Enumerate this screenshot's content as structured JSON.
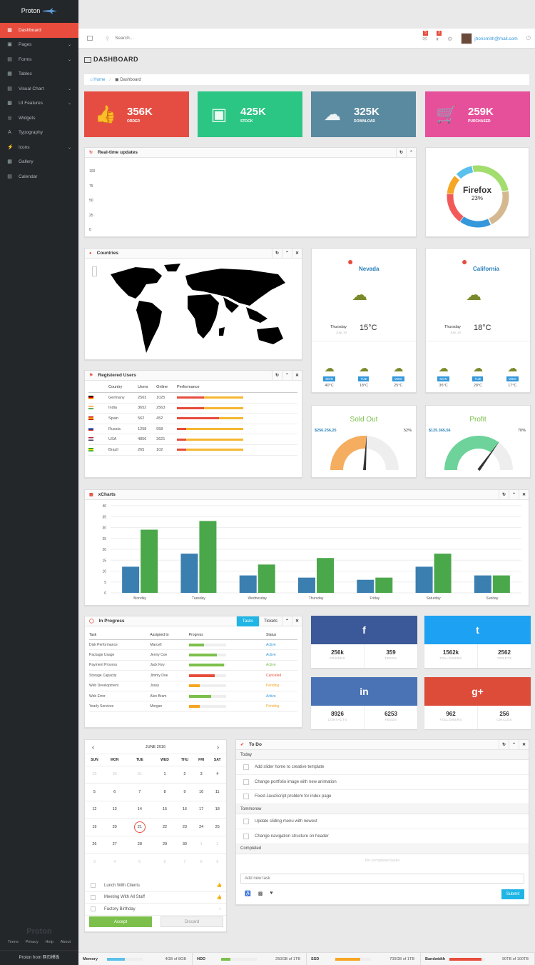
{
  "sidebar": {
    "brand": "Proton",
    "items": [
      {
        "label": "Dashboard",
        "active": true,
        "chev": false
      },
      {
        "label": "Pages",
        "chev": true
      },
      {
        "label": "Forms",
        "chev": true
      },
      {
        "label": "Tables",
        "chev": false
      },
      {
        "label": "Visual Chart",
        "chev": true
      },
      {
        "label": "UI Features",
        "chev": true
      },
      {
        "label": "Widgets",
        "chev": false
      },
      {
        "label": "Typography",
        "chev": false
      },
      {
        "label": "Icons",
        "chev": true
      },
      {
        "label": "Gallery",
        "chev": false
      },
      {
        "label": "Calendar",
        "chev": false
      }
    ],
    "footer_logo": "Proton",
    "links": [
      "Terms",
      "Privacy",
      "Help",
      "About"
    ],
    "credit": "Proton from 网页模板"
  },
  "topbar": {
    "search_placeholder": "Search...",
    "mail_badge": "5",
    "bell_badge": "3",
    "email": "jhonsmith@mail.com"
  },
  "page": {
    "title": "DASHBOARD",
    "crumb_home": "Home",
    "crumb_current": "Dashboard"
  },
  "stats": [
    {
      "value": "356K",
      "label": "ORDER",
      "color": "#e54d42"
    },
    {
      "value": "425K",
      "label": "STOCK",
      "color": "#2bc584"
    },
    {
      "value": "325K",
      "label": "DOWNLOAD",
      "color": "#5a8aa0"
    },
    {
      "value": "259K",
      "label": "PURCHASED",
      "color": "#e6509b"
    }
  ],
  "realtime": {
    "title": "Real-time updates",
    "yticks": [
      "100",
      "75",
      "50",
      "25",
      "0"
    ]
  },
  "browser": {
    "name": "Firefox",
    "percent": "23%"
  },
  "countries": {
    "title": "Countries"
  },
  "weather": [
    {
      "city": "Nevada",
      "day": "Thursday",
      "date": "July, 10",
      "temp": "15°C",
      "forecast": [
        {
          "d": "MON",
          "t": "40°C"
        },
        {
          "d": "TUE",
          "t": "18°C"
        },
        {
          "d": "WED",
          "t": "25°C"
        }
      ]
    },
    {
      "city": "California",
      "day": "Thursday",
      "date": "July, 10",
      "temp": "18°C",
      "forecast": [
        {
          "d": "MON",
          "t": "35°C"
        },
        {
          "d": "TUE",
          "t": "28°C"
        },
        {
          "d": "WED",
          "t": "17°C"
        }
      ]
    }
  ],
  "users": {
    "title": "Registered Users",
    "headers": [
      "Country",
      "Users",
      "Online",
      "Performance"
    ],
    "rows": [
      {
        "country": "Germany",
        "users": "2563",
        "online": "1025",
        "red": 0.58,
        "flag": [
          "#000",
          "#d00",
          "#fc0"
        ]
      },
      {
        "country": "India",
        "users": "3652",
        "online": "2563",
        "red": 0.58,
        "flag": [
          "#f93",
          "#fff",
          "#138808"
        ]
      },
      {
        "country": "Spain",
        "users": "562",
        "online": "452",
        "red": 0.9,
        "flag": [
          "#c60b1e",
          "#ffc400",
          "#c60b1e"
        ]
      },
      {
        "country": "Russia",
        "users": "1258",
        "online": "958",
        "red": 0.2,
        "flag": [
          "#fff",
          "#0039a6",
          "#d52b1e"
        ]
      },
      {
        "country": "USA",
        "users": "4856",
        "online": "3621",
        "red": 0.2,
        "flag": [
          "#b22234",
          "#fff",
          "#3c3b6e"
        ]
      },
      {
        "country": "Brazil",
        "users": "265",
        "online": "102",
        "red": 0.2,
        "flag": [
          "#009c3b",
          "#ffdf00",
          "#009c3b"
        ]
      }
    ]
  },
  "gauges": [
    {
      "title": "Sold Out",
      "amount": "$256.256,25",
      "pct": "52%",
      "fill": 0.52,
      "color": "#f5ad60"
    },
    {
      "title": "Profit",
      "amount": "$125.365,56",
      "pct": "70%",
      "fill": 0.7,
      "color": "#6dd39a"
    }
  ],
  "chart_data": {
    "type": "bar",
    "categories": [
      "Monday",
      "Tuesday",
      "Wednesday",
      "Thursday",
      "Friday",
      "Saturday",
      "Sunday"
    ],
    "series": [
      {
        "values": [
          12,
          18,
          8,
          7,
          6,
          12,
          8
        ]
      },
      {
        "values": [
          29,
          33,
          13,
          16,
          7,
          18,
          8
        ]
      }
    ],
    "ylim": [
      0,
      40
    ],
    "yticks": [
      0,
      5,
      10,
      15,
      20,
      25,
      30,
      35,
      40
    ],
    "title": "xCharts"
  },
  "progress": {
    "title": "In Progress",
    "tab1": "Tasks",
    "tab2": "Tickets",
    "headers": [
      "Task",
      "Assigned to",
      "Progress",
      "Status"
    ],
    "rows": [
      {
        "task": "Disk Performance",
        "who": "Marcell",
        "p": 0.4,
        "c": "#7cc04b",
        "status": "Active",
        "sc": "#3498db"
      },
      {
        "task": "Package Usage",
        "who": "Jenny Coe",
        "p": 0.75,
        "c": "#7cc04b",
        "status": "Active",
        "sc": "#3498db"
      },
      {
        "task": "Payment Process",
        "who": "Jack Key",
        "p": 0.95,
        "c": "#7cc04b",
        "status": "Active",
        "sc": "#7cc04b"
      },
      {
        "task": "Storage Capacity",
        "who": "Jimmy Doe",
        "p": 0.7,
        "c": "#e74c3c",
        "status": "Canceled",
        "sc": "#e74c3c"
      },
      {
        "task": "Web Development",
        "who": "Jossy",
        "p": 0.3,
        "c": "#f5a623",
        "status": "Pending",
        "sc": "#f5a623"
      },
      {
        "task": "Web Error",
        "who": "Alex Bram",
        "p": 0.6,
        "c": "#7cc04b",
        "status": "Active",
        "sc": "#3498db"
      },
      {
        "task": "Yearly Services",
        "who": "Morgan",
        "p": 0.3,
        "c": "#f5a623",
        "status": "Pending",
        "sc": "#f5a623"
      }
    ]
  },
  "social": [
    {
      "icon": "f",
      "color": "#3b5998",
      "a": "256k",
      "al": "FRIENDS",
      "b": "359",
      "bl": "FEEDS"
    },
    {
      "icon": "t",
      "color": "#1da1f2",
      "a": "1562k",
      "al": "FOLLOWERS",
      "b": "2562",
      "bl": "TWEETS"
    },
    {
      "icon": "in",
      "color": "#4a73b6",
      "a": "8926",
      "al": "CONTACTS",
      "b": "6253",
      "bl": "FEEDS"
    },
    {
      "icon": "g+",
      "color": "#dd4b39",
      "a": "962",
      "al": "FOLLOWERS",
      "b": "256",
      "bl": "CIRCLES"
    }
  ],
  "calendar": {
    "month": "JUNE 2016",
    "days": [
      "SUN",
      "MON",
      "TUE",
      "WED",
      "THU",
      "FRI",
      "SAT"
    ],
    "weeks": [
      [
        "29",
        "30",
        "31",
        "1",
        "2",
        "3",
        "4"
      ],
      [
        "5",
        "6",
        "7",
        "8",
        "9",
        "10",
        "11"
      ],
      [
        "12",
        "13",
        "14",
        "15",
        "16",
        "17",
        "18"
      ],
      [
        "19",
        "20",
        "21",
        "22",
        "23",
        "24",
        "25"
      ],
      [
        "26",
        "27",
        "28",
        "29",
        "30",
        "1",
        "2"
      ],
      [
        "3",
        "4",
        "5",
        "6",
        "7",
        "8",
        "9"
      ]
    ],
    "events": [
      "Lunch With Clients",
      "Meeting With All Staff",
      "Factory Birthday"
    ],
    "accept": "Accept",
    "discard": "Discard"
  },
  "todo": {
    "title": "To Do",
    "today": "Today",
    "tomorrow": "Tommorow",
    "completed": "Completed",
    "today_items": [
      "Add slider home to creative template",
      "Change portfolio image with new animation",
      "Fixed JavaScript problem for index page"
    ],
    "tomorrow_items": [
      "Update sliding menu with newest",
      "Change navigation structure on header"
    ],
    "empty": "No completed tasks",
    "placeholder": "Add new task",
    "submit": "Submit"
  },
  "footer": [
    {
      "label": "Memory",
      "val": "4GB of 8GB",
      "p": 0.5,
      "c": "#5bc0eb"
    },
    {
      "label": "HDD",
      "val": "250GB of 1TB",
      "p": 0.25,
      "c": "#7cc04b"
    },
    {
      "label": "SSD",
      "val": "700GB of 1TB",
      "p": 0.7,
      "c": "#f5a623"
    },
    {
      "label": "Bandwidth",
      "val": "90TB of 100TB",
      "p": 0.9,
      "c": "#e74c3c"
    }
  ]
}
